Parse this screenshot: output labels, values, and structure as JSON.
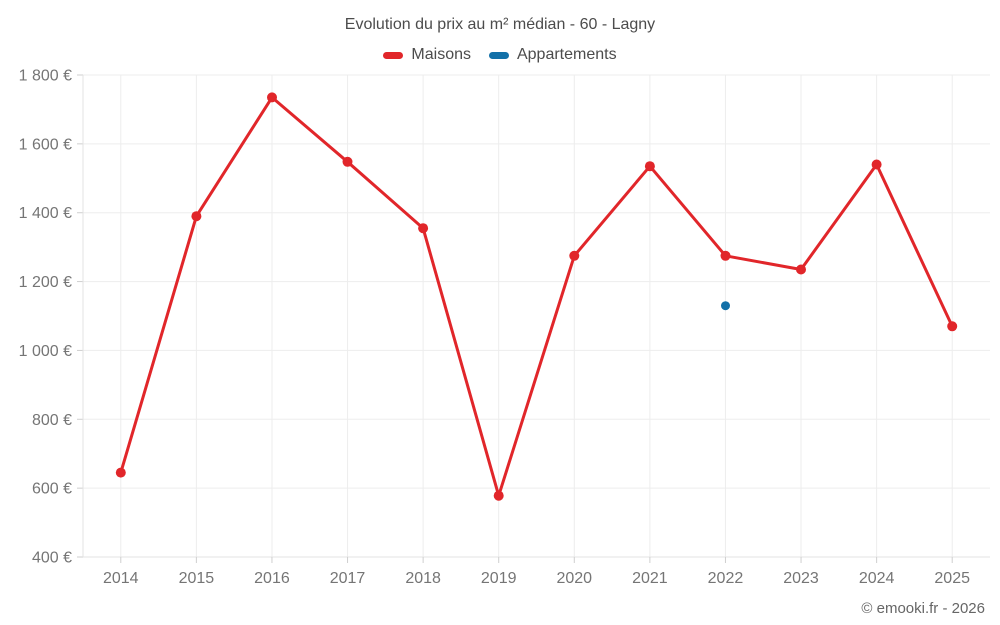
{
  "page": {
    "watermark": "© emooki.fr - 2026"
  },
  "chart_data": {
    "type": "line",
    "title": "Evolution du prix au m² médian - 60 - Lagny",
    "categories": [
      "2014",
      "2015",
      "2016",
      "2017",
      "2018",
      "2019",
      "2020",
      "2021",
      "2022",
      "2023",
      "2024",
      "2025"
    ],
    "series": [
      {
        "name": "Maisons",
        "color": "#e1262a",
        "values": [
          645,
          1390,
          1735,
          1548,
          1355,
          578,
          1275,
          1535,
          1275,
          1235,
          1540,
          1070
        ]
      },
      {
        "name": "Appartements",
        "color": "#1270a8",
        "values": [
          null,
          null,
          null,
          null,
          null,
          null,
          null,
          null,
          1130,
          null,
          null,
          null
        ]
      }
    ],
    "ylabel": "",
    "xlabel": "",
    "ylim": [
      400,
      1800
    ],
    "yticks": {
      "values": [
        400,
        600,
        800,
        1000,
        1200,
        1400,
        1600,
        1800
      ],
      "labels": [
        "400 €",
        "600 €",
        "800 €",
        "1 000 €",
        "1 200 €",
        "1 400 €",
        "1 600 €",
        "1 800 €"
      ]
    },
    "grid": true,
    "legend_position": "top"
  }
}
